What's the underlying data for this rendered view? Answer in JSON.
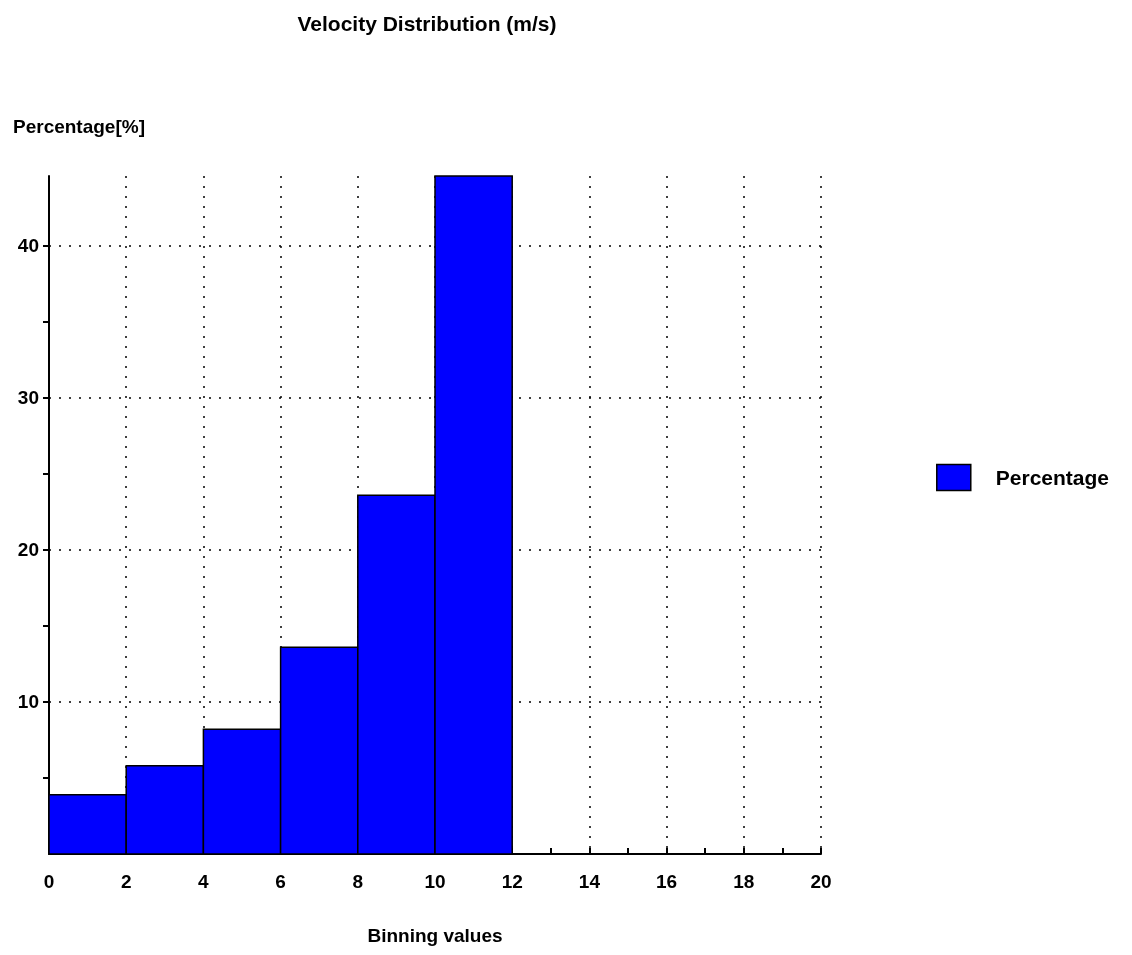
{
  "chart_data": {
    "type": "histogram",
    "title": "Velocity Distribution (m/s)",
    "xlabel": "Binning values",
    "ylabel": "Percentage[%]",
    "bins": [
      0,
      2,
      4,
      6,
      8,
      10,
      12
    ],
    "series": [
      {
        "name": "Percentage",
        "color": "#0000ff",
        "values": [
          3.9,
          5.8,
          8.2,
          13.6,
          23.6,
          44.6
        ]
      }
    ],
    "xlim": [
      0,
      20
    ],
    "xticks": [
      0,
      {
        "value": 1,
        "label": null
      },
      2,
      {
        "value": 3,
        "label": null
      },
      4,
      {
        "value": 5,
        "label": null
      },
      6,
      {
        "value": 7,
        "label": null
      },
      8,
      {
        "value": 9,
        "label": null
      },
      10,
      {
        "value": 11,
        "label": null
      },
      12,
      {
        "value": 13,
        "label": null
      },
      14,
      {
        "value": 15,
        "label": null
      },
      16,
      {
        "value": 17,
        "label": null
      },
      18,
      {
        "value": 19,
        "label": null
      },
      20
    ],
    "ylim": [
      0,
      44.6
    ],
    "yticks": [
      {
        "value": 5,
        "label": null
      },
      10,
      {
        "value": 15,
        "label": null
      },
      20,
      {
        "value": 25,
        "label": null
      },
      30,
      {
        "value": 35,
        "label": null
      },
      40
    ],
    "grid": true,
    "legend": "right"
  }
}
